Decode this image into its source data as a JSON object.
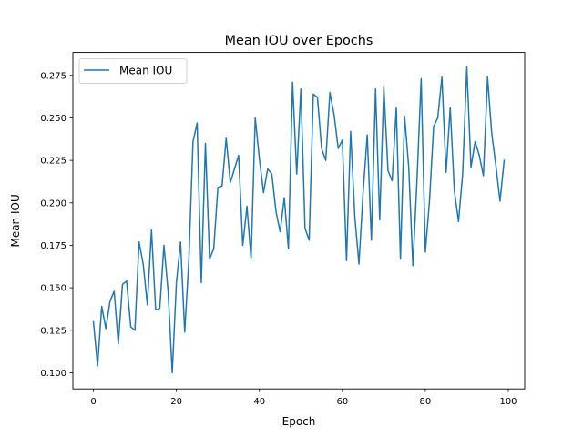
{
  "chart_data": {
    "type": "line",
    "title": "Mean IOU over Epochs",
    "xlabel": "Epoch",
    "ylabel": "Mean IOU",
    "xlim": [
      -4.95,
      103.95
    ],
    "ylim": [
      0.0905,
      0.2885
    ],
    "xticks": [
      0,
      20,
      40,
      60,
      80,
      100
    ],
    "xtick_labels": [
      "0",
      "20",
      "40",
      "60",
      "80",
      "100"
    ],
    "yticks": [
      0.1,
      0.125,
      0.15,
      0.175,
      0.2,
      0.225,
      0.25,
      0.275
    ],
    "ytick_labels": [
      "0.100",
      "0.125",
      "0.150",
      "0.175",
      "0.200",
      "0.225",
      "0.250",
      "0.275"
    ],
    "grid": false,
    "legend": {
      "position": "top-left",
      "entries": [
        "Mean IOU"
      ]
    },
    "series": [
      {
        "name": "Mean IOU",
        "color": "#1f77b4",
        "x": [
          0,
          1,
          2,
          3,
          4,
          5,
          6,
          7,
          8,
          9,
          10,
          11,
          12,
          13,
          14,
          15,
          16,
          17,
          18,
          19,
          20,
          21,
          22,
          23,
          24,
          25,
          26,
          27,
          28,
          29,
          30,
          31,
          32,
          33,
          34,
          35,
          36,
          37,
          38,
          39,
          40,
          41,
          42,
          43,
          44,
          45,
          46,
          47,
          48,
          49,
          50,
          51,
          52,
          53,
          54,
          55,
          56,
          57,
          58,
          59,
          60,
          61,
          62,
          63,
          64,
          65,
          66,
          67,
          68,
          69,
          70,
          71,
          72,
          73,
          74,
          75,
          76,
          77,
          78,
          79,
          80,
          81,
          82,
          83,
          84,
          85,
          86,
          87,
          88,
          89,
          90,
          91,
          92,
          93,
          94,
          95,
          96,
          97,
          98,
          99
        ],
        "values": [
          0.13,
          0.104,
          0.139,
          0.126,
          0.142,
          0.148,
          0.117,
          0.152,
          0.154,
          0.127,
          0.125,
          0.177,
          0.164,
          0.14,
          0.184,
          0.137,
          0.138,
          0.175,
          0.148,
          0.1,
          0.153,
          0.177,
          0.124,
          0.166,
          0.236,
          0.247,
          0.153,
          0.235,
          0.167,
          0.173,
          0.209,
          0.21,
          0.238,
          0.212,
          0.22,
          0.228,
          0.175,
          0.198,
          0.167,
          0.25,
          0.226,
          0.206,
          0.22,
          0.217,
          0.195,
          0.183,
          0.203,
          0.173,
          0.271,
          0.217,
          0.267,
          0.185,
          0.178,
          0.264,
          0.262,
          0.232,
          0.225,
          0.265,
          0.252,
          0.232,
          0.237,
          0.166,
          0.242,
          0.192,
          0.164,
          0.206,
          0.24,
          0.178,
          0.267,
          0.19,
          0.268,
          0.219,
          0.213,
          0.256,
          0.167,
          0.251,
          0.221,
          0.163,
          0.214,
          0.273,
          0.171,
          0.201,
          0.245,
          0.25,
          0.274,
          0.218,
          0.256,
          0.207,
          0.189,
          0.217,
          0.28,
          0.221,
          0.236,
          0.228,
          0.216,
          0.274,
          0.241,
          0.222,
          0.201,
          0.225
        ]
      }
    ]
  }
}
